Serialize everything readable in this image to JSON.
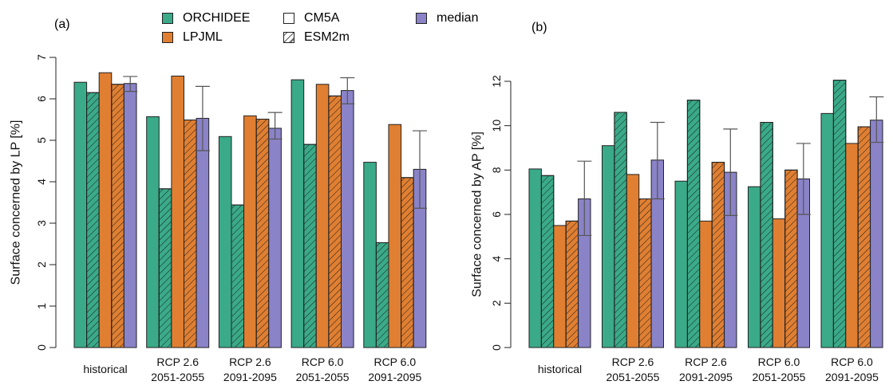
{
  "panels": {
    "a": {
      "label": "(a)"
    },
    "b": {
      "label": "(b)"
    }
  },
  "legend": {
    "orchidee": "ORCHIDEE",
    "lpjml": "LPJML",
    "cm5a": "CM5A",
    "esm2m": "ESM2m",
    "median": "median"
  },
  "colors": {
    "orchidee": "#3aaa88",
    "lpjml": "#e07f32",
    "median": "#8a83c8",
    "hatch": "#1a1a1a"
  },
  "chart_data": [
    {
      "type": "bar",
      "panel": "(a)",
      "ylabel": "Surface concerned by LP [%]",
      "ylim": [
        0,
        7
      ],
      "yticks": [
        0,
        1,
        2,
        3,
        4,
        5,
        6,
        7
      ],
      "categories": [
        [
          "historical"
        ],
        [
          "RCP 2.6",
          "2051-2055"
        ],
        [
          "RCP 2.6",
          "2091-2095"
        ],
        [
          "RCP 6.0",
          "2051-2055"
        ],
        [
          "RCP 6.0",
          "2091-2095"
        ]
      ],
      "series": [
        {
          "name": "ORCHIDEE CM5A",
          "values": [
            6.4,
            5.57,
            5.09,
            6.46,
            4.47
          ]
        },
        {
          "name": "ORCHIDEE ESM2m",
          "values": [
            6.15,
            3.83,
            3.44,
            4.9,
            2.53
          ]
        },
        {
          "name": "LPJML CM5A",
          "values": [
            6.63,
            6.55,
            5.59,
            6.35,
            5.38
          ]
        },
        {
          "name": "LPJML ESM2m",
          "values": [
            6.35,
            5.49,
            5.51,
            6.07,
            4.1
          ]
        },
        {
          "name": "median",
          "values": [
            6.37,
            5.53,
            5.29,
            6.2,
            4.3
          ]
        }
      ],
      "error_bars": {
        "series": "median",
        "low": [
          6.18,
          4.75,
          5.03,
          5.88,
          3.36
        ],
        "high": [
          6.54,
          6.3,
          5.67,
          6.51,
          5.23
        ]
      }
    },
    {
      "type": "bar",
      "panel": "(b)",
      "ylabel": "Surface concerned by AP [%]",
      "ylim": [
        0,
        12
      ],
      "yticks": [
        0,
        2,
        4,
        6,
        8,
        10,
        12
      ],
      "categories": [
        [
          "historical"
        ],
        [
          "RCP 2.6",
          "2051-2055"
        ],
        [
          "RCP 2.6",
          "2091-2095"
        ],
        [
          "RCP 6.0",
          "2051-2055"
        ],
        [
          "RCP 6.0",
          "2091-2095"
        ]
      ],
      "series": [
        {
          "name": "ORCHIDEE CM5A",
          "values": [
            8.05,
            9.1,
            7.5,
            7.25,
            10.55
          ]
        },
        {
          "name": "ORCHIDEE ESM2m",
          "values": [
            7.75,
            10.6,
            11.15,
            10.15,
            12.05
          ]
        },
        {
          "name": "LPJML CM5A",
          "values": [
            5.5,
            7.8,
            5.7,
            5.8,
            9.2
          ]
        },
        {
          "name": "LPJML ESM2m",
          "values": [
            5.7,
            6.7,
            8.35,
            8.0,
            9.95
          ]
        },
        {
          "name": "median",
          "values": [
            6.7,
            8.45,
            7.9,
            7.6,
            10.25
          ]
        }
      ],
      "error_bars": {
        "series": "median",
        "low": [
          5.05,
          6.7,
          5.95,
          6.0,
          9.25
        ],
        "high": [
          8.4,
          10.15,
          9.85,
          9.2,
          11.3
        ]
      }
    }
  ]
}
